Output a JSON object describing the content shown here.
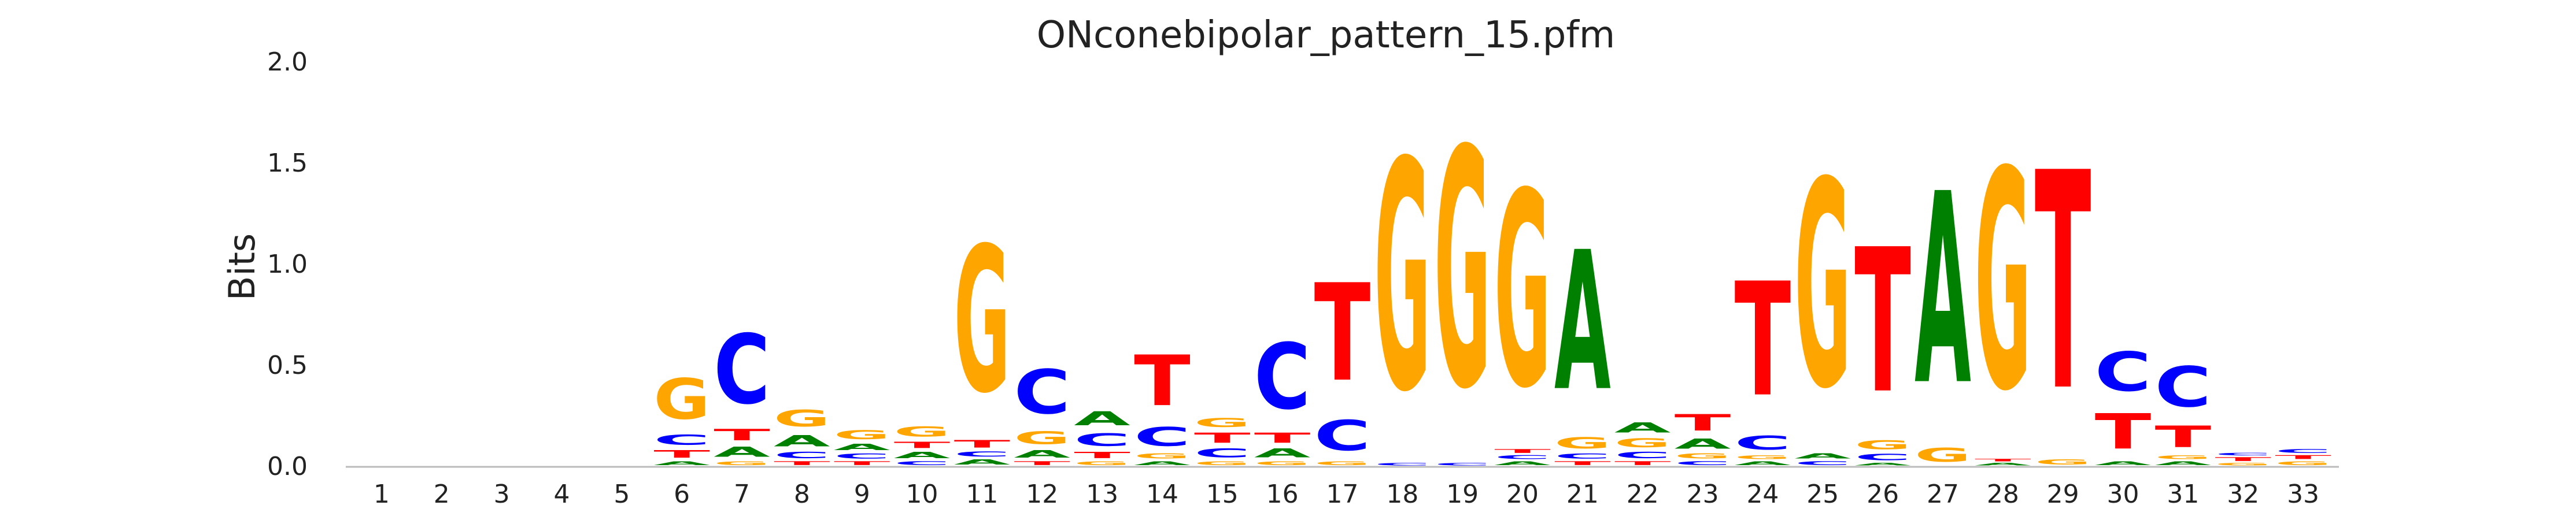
{
  "chart_data": {
    "type": "sequence-logo",
    "title": "ONconebipolar_pattern_15.pfm",
    "xlabel": "",
    "ylabel": "Bits",
    "ylim": [
      0,
      2.0
    ],
    "yticks": [
      "0.0",
      "0.5",
      "1.0",
      "1.5",
      "2.0"
    ],
    "positions": [
      "1",
      "2",
      "3",
      "4",
      "5",
      "6",
      "7",
      "8",
      "9",
      "10",
      "11",
      "12",
      "13",
      "14",
      "15",
      "16",
      "17",
      "18",
      "19",
      "20",
      "21",
      "22",
      "23",
      "24",
      "25",
      "26",
      "27",
      "28",
      "29",
      "30",
      "31",
      "32",
      "33"
    ],
    "colors": {
      "A": "#008000",
      "C": "#0000ff",
      "G": "#ffa500",
      "T": "#ff0000"
    },
    "stacks": [
      [],
      [],
      [],
      [],
      [],
      [
        [
          "A",
          0.03
        ],
        [
          "T",
          0.06
        ],
        [
          "C",
          0.08
        ],
        [
          "G",
          0.32
        ]
      ],
      [
        [
          "G",
          0.03
        ],
        [
          "A",
          0.08
        ],
        [
          "T",
          0.09
        ],
        [
          "C",
          0.55
        ]
      ],
      [
        [
          "T",
          0.03
        ],
        [
          "C",
          0.05
        ],
        [
          "A",
          0.09
        ],
        [
          "G",
          0.13
        ]
      ],
      [
        [
          "T",
          0.03
        ],
        [
          "C",
          0.04
        ],
        [
          "A",
          0.05
        ],
        [
          "G",
          0.07
        ]
      ],
      [
        [
          "C",
          0.03
        ],
        [
          "A",
          0.05
        ],
        [
          "T",
          0.05
        ],
        [
          "G",
          0.08
        ]
      ],
      [
        [
          "A",
          0.04
        ],
        [
          "C",
          0.04
        ],
        [
          "T",
          0.06
        ],
        [
          "G",
          1.15
        ]
      ],
      [
        [
          "T",
          0.03
        ],
        [
          "A",
          0.06
        ],
        [
          "G",
          0.1
        ],
        [
          "C",
          0.35
        ]
      ],
      [
        [
          "G",
          0.03
        ],
        [
          "T",
          0.05
        ],
        [
          "C",
          0.1
        ],
        [
          "A",
          0.11
        ]
      ],
      [
        [
          "A",
          0.03
        ],
        [
          "G",
          0.04
        ],
        [
          "C",
          0.15
        ],
        [
          "T",
          0.4
        ]
      ],
      [
        [
          "G",
          0.03
        ],
        [
          "C",
          0.07
        ],
        [
          "T",
          0.08
        ],
        [
          "G",
          0.07
        ]
      ],
      [
        [
          "G",
          0.03
        ],
        [
          "A",
          0.07
        ],
        [
          "T",
          0.08
        ],
        [
          "C",
          0.52
        ]
      ],
      [
        [
          "G",
          0.03
        ],
        [
          "C",
          0.24
        ],
        [
          "T",
          0.77
        ]
      ],
      [
        [
          "C",
          0.02
        ],
        [
          "G",
          1.81
        ]
      ],
      [
        [
          "C",
          0.02
        ],
        [
          "G",
          1.88
        ]
      ],
      [
        [
          "A",
          0.03
        ],
        [
          "C",
          0.03
        ],
        [
          "T",
          0.03
        ],
        [
          "G",
          1.54
        ]
      ],
      [
        [
          "T",
          0.03
        ],
        [
          "C",
          0.04
        ],
        [
          "G",
          0.09
        ],
        [
          "A",
          1.1
        ]
      ],
      [
        [
          "T",
          0.03
        ],
        [
          "C",
          0.05
        ],
        [
          "G",
          0.07
        ],
        [
          "A",
          0.08
        ]
      ],
      [
        [
          "C",
          0.03
        ],
        [
          "G",
          0.04
        ],
        [
          "A",
          0.08
        ],
        [
          "T",
          0.13
        ]
      ],
      [
        [
          "A",
          0.03
        ],
        [
          "G",
          0.03
        ],
        [
          "C",
          0.11
        ],
        [
          "T",
          0.9
        ]
      ],
      [
        [
          "C",
          0.03
        ],
        [
          "A",
          0.04
        ],
        [
          "G",
          1.63
        ]
      ],
      [
        [
          "A",
          0.02
        ],
        [
          "C",
          0.05
        ],
        [
          "G",
          0.07
        ],
        [
          "T",
          1.14
        ]
      ],
      [
        [
          "G",
          0.11
        ],
        [
          "A",
          1.51
        ]
      ],
      [
        [
          "A",
          0.02
        ],
        [
          "T",
          0.02
        ],
        [
          "G",
          1.73
        ]
      ],
      [
        [
          "G",
          0.04
        ],
        [
          "T",
          1.72
        ]
      ],
      [
        [
          "A",
          0.03
        ],
        [
          "T",
          0.28
        ],
        [
          "C",
          0.31
        ]
      ],
      [
        [
          "A",
          0.03
        ],
        [
          "G",
          0.03
        ],
        [
          "T",
          0.17
        ],
        [
          "C",
          0.32
        ]
      ],
      [
        [
          "G",
          0.02
        ],
        [
          "T",
          0.03
        ],
        [
          "C",
          0.02
        ]
      ],
      [
        [
          "G",
          0.03
        ],
        [
          "T",
          0.03
        ],
        [
          "C",
          0.03
        ]
      ]
    ]
  }
}
